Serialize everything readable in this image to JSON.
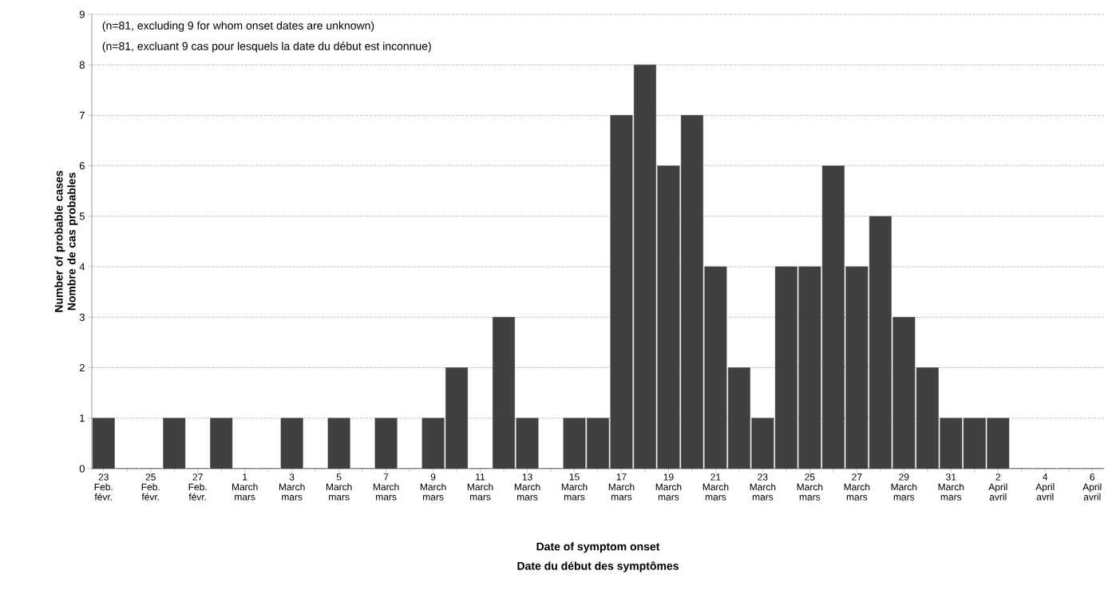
{
  "chart_data": {
    "type": "bar",
    "categories": [
      "23 Feb. févr.",
      null,
      "25 Feb. févr.",
      null,
      "27 Feb. févr.",
      null,
      "1 March mars",
      null,
      "3 March mars",
      null,
      "5 March mars",
      null,
      "7 March mars",
      null,
      "9 March mars",
      null,
      "11 March mars",
      null,
      "13 March mars",
      null,
      "15 March mars",
      null,
      "17 March mars",
      null,
      "19 March mars",
      null,
      "21 March mars",
      null,
      "23 March mars",
      null,
      "25 March mars",
      null,
      "27 March mars",
      null,
      "29 March mars",
      null,
      "31 March mars",
      null,
      "2 April avril",
      null,
      "4 April avril",
      null,
      "6 April avril"
    ],
    "values": [
      1,
      0,
      0,
      1,
      0,
      1,
      0,
      0,
      1,
      0,
      1,
      0,
      1,
      0,
      1,
      2,
      0,
      3,
      1,
      0,
      1,
      1,
      7,
      8,
      6,
      7,
      4,
      2,
      1,
      4,
      4,
      6,
      4,
      5,
      3,
      2,
      1,
      1,
      1,
      0,
      0,
      0,
      0
    ],
    "color": "#404040",
    "ylim": [
      0,
      9
    ],
    "yticks": [
      0,
      1,
      2,
      3,
      4,
      5,
      6,
      7,
      8,
      9
    ],
    "grid": "y",
    "xlabel": "Date of symptom onset",
    "ylabel": "Number of probable cases Nombre de cas probables",
    "annotations": [
      "(n=81, excluding 9 for whom onset dates are unknown)",
      "(n=81, excluant 9 cas pour lesquels la date du début est inconnue)",
      "Date du début des symptômes"
    ]
  }
}
